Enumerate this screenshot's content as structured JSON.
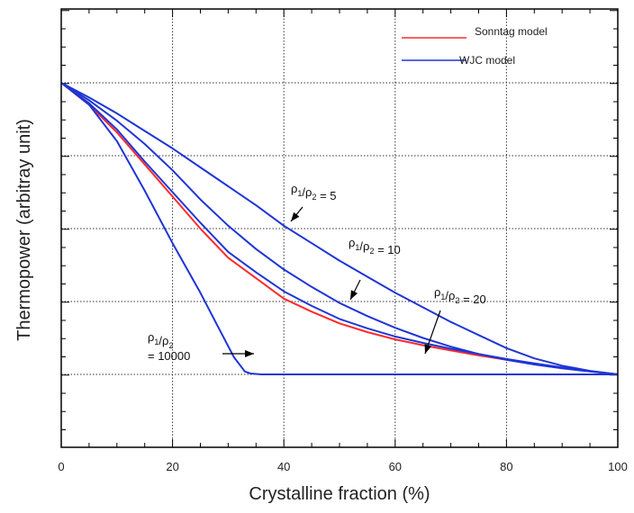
{
  "chart_data": {
    "type": "line",
    "title": "",
    "xlabel": "Crystalline fraction (%)",
    "ylabel": "Thermopower (arbitray unit)",
    "xlim": [
      0,
      100
    ],
    "xticks": [
      "0",
      "20",
      "40",
      "60",
      "80",
      "100"
    ],
    "grid": true,
    "legend_position": "top-right",
    "legend": [
      {
        "label": "Sonntag model",
        "color": "#ff2a2a"
      },
      {
        "label": "WJC model",
        "color": "#1f35d6"
      }
    ],
    "annotations": [
      {
        "pre": "ρ",
        "s1": "1",
        "mid": "/ρ",
        "s2": "2",
        "post": " = 5"
      },
      {
        "pre": "ρ",
        "s1": "1",
        "mid": "/ρ",
        "s2": "2",
        "post": " = 10"
      },
      {
        "pre": "ρ",
        "s1": "1",
        "mid": "/ρ",
        "s2": "2",
        "post": " = 20"
      },
      {
        "pre": "ρ",
        "s1": "1",
        "mid": "/ρ",
        "s2": "2",
        "post": "",
        "line2": "= 10000"
      }
    ],
    "series": [
      {
        "model": "Sonntag model",
        "color": "#ff2a2a",
        "x": [
          0,
          5,
          10,
          15,
          20,
          25,
          30,
          35,
          40,
          45,
          50,
          55,
          60,
          65,
          70,
          75,
          80,
          85,
          90,
          95,
          100
        ],
        "y": [
          1.0,
          0.925,
          0.83,
          0.72,
          0.61,
          0.5,
          0.4,
          0.33,
          0.26,
          0.215,
          0.175,
          0.145,
          0.12,
          0.1,
          0.082,
          0.065,
          0.05,
          0.036,
          0.023,
          0.011,
          0.0
        ]
      },
      {
        "model": "WJC model",
        "color": "#1f35d6",
        "annotation": 0,
        "x": [
          0,
          5,
          10,
          15,
          20,
          25,
          30,
          35,
          40,
          45,
          50,
          55,
          60,
          65,
          70,
          75,
          80,
          85,
          90,
          95,
          100
        ],
        "y": [
          1.0,
          0.95,
          0.895,
          0.835,
          0.775,
          0.71,
          0.645,
          0.58,
          0.51,
          0.45,
          0.39,
          0.335,
          0.28,
          0.23,
          0.18,
          0.135,
          0.09,
          0.055,
          0.03,
          0.012,
          0.0
        ]
      },
      {
        "model": "WJC model",
        "color": "#1f35d6",
        "annotation": 1,
        "x": [
          0,
          5,
          10,
          15,
          20,
          25,
          30,
          35,
          40,
          45,
          50,
          55,
          60,
          65,
          70,
          75,
          80,
          85,
          90,
          95,
          100
        ],
        "y": [
          1.0,
          0.94,
          0.87,
          0.79,
          0.7,
          0.6,
          0.51,
          0.43,
          0.36,
          0.3,
          0.245,
          0.2,
          0.16,
          0.125,
          0.095,
          0.07,
          0.05,
          0.034,
          0.021,
          0.01,
          0.0
        ]
      },
      {
        "model": "WJC model",
        "color": "#1f35d6",
        "annotation": 2,
        "x": [
          0,
          5,
          10,
          15,
          20,
          25,
          30,
          35,
          40,
          45,
          50,
          55,
          60,
          65,
          70,
          75,
          80,
          85,
          90,
          95,
          100
        ],
        "y": [
          1.0,
          0.93,
          0.84,
          0.73,
          0.625,
          0.52,
          0.42,
          0.35,
          0.285,
          0.235,
          0.19,
          0.158,
          0.13,
          0.108,
          0.088,
          0.07,
          0.053,
          0.038,
          0.024,
          0.011,
          0.0
        ]
      },
      {
        "model": "WJC model",
        "color": "#1f35d6",
        "annotation": 3,
        "x": [
          0,
          5,
          10,
          15,
          20,
          25,
          28,
          31,
          33,
          34,
          36,
          40,
          50,
          60,
          70,
          80,
          90,
          100
        ],
        "y": [
          1.0,
          0.925,
          0.8,
          0.63,
          0.45,
          0.28,
          0.17,
          0.06,
          0.01,
          0.003,
          0.0,
          0.0,
          0.0,
          0.0,
          0.0,
          0.0,
          0.0,
          0.0
        ]
      }
    ]
  }
}
